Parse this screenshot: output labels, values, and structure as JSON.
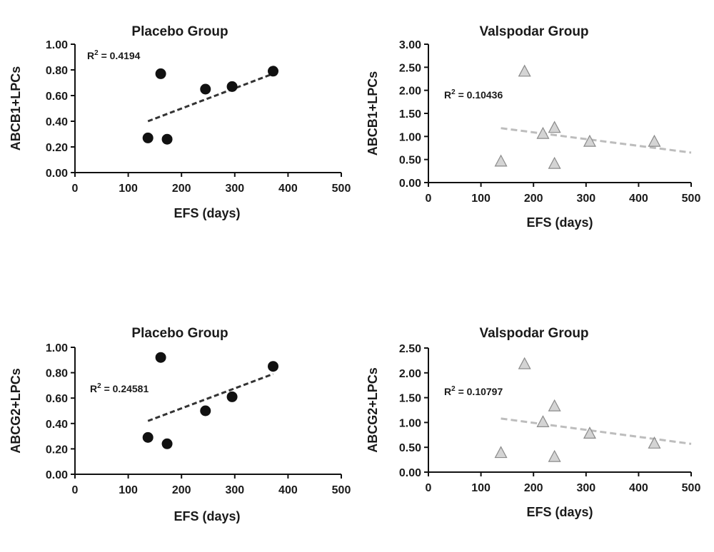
{
  "colors": {
    "text": "#1a1a1a",
    "axis": "#111111",
    "placebo_marker": "#111111",
    "placebo_trend": "#333333",
    "valspodar_marker_fill": "#d4d4d4",
    "valspodar_marker_stroke": "#8a8a8a",
    "valspodar_trend": "#bdbdbd"
  },
  "chart_data": [
    {
      "type": "scatter",
      "title": "Placebo Group",
      "xlabel": "EFS (days)",
      "ylabel": "ABCB1+LPCs",
      "xlim": [
        0,
        500
      ],
      "ylim": [
        0,
        1.0
      ],
      "x_ticks": [
        "0",
        "100",
        "200",
        "300",
        "400",
        "500"
      ],
      "y_ticks": [
        "0.00",
        "0.20",
        "0.40",
        "0.60",
        "0.80",
        "1.00"
      ],
      "annotation": {
        "r2_prefix": "R",
        "r2_sup": "2",
        "r2_value": " = 0.4194"
      },
      "marker": "circle",
      "trendline_style": "dashed",
      "trendline": {
        "x": [
          137,
          372
        ],
        "y": [
          0.4,
          0.77
        ]
      },
      "points": [
        {
          "x": 137,
          "y": 0.27
        },
        {
          "x": 161,
          "y": 0.77
        },
        {
          "x": 173,
          "y": 0.26
        },
        {
          "x": 245,
          "y": 0.65
        },
        {
          "x": 295,
          "y": 0.67
        },
        {
          "x": 372,
          "y": 0.79
        }
      ]
    },
    {
      "type": "scatter",
      "title": "Valspodar Group",
      "xlabel": "EFS (days)",
      "ylabel": "ABCB1+LPCs",
      "xlim": [
        0,
        500
      ],
      "ylim": [
        0,
        3.0
      ],
      "x_ticks": [
        "0",
        "100",
        "200",
        "300",
        "400",
        "500"
      ],
      "y_ticks": [
        "0.00",
        "0.50",
        "1.00",
        "1.50",
        "2.00",
        "2.50",
        "3.00"
      ],
      "annotation": {
        "r2_prefix": "R",
        "r2_sup": "2",
        "r2_value": " = 0.10436"
      },
      "marker": "triangle",
      "trendline_style": "dashed",
      "trendline": {
        "x": [
          138,
          500
        ],
        "y": [
          1.18,
          0.65
        ]
      },
      "points": [
        {
          "x": 138,
          "y": 0.45
        },
        {
          "x": 183,
          "y": 2.4
        },
        {
          "x": 218,
          "y": 1.05
        },
        {
          "x": 240,
          "y": 1.18
        },
        {
          "x": 240,
          "y": 0.4
        },
        {
          "x": 307,
          "y": 0.88
        },
        {
          "x": 430,
          "y": 0.88
        }
      ]
    },
    {
      "type": "scatter",
      "title": "Placebo Group",
      "xlabel": "EFS (days)",
      "ylabel": "ABCG2+LPCs",
      "xlim": [
        0,
        500
      ],
      "ylim": [
        0,
        1.0
      ],
      "x_ticks": [
        "0",
        "100",
        "200",
        "300",
        "400",
        "500"
      ],
      "y_ticks": [
        "0.00",
        "0.20",
        "0.40",
        "0.60",
        "0.80",
        "1.00"
      ],
      "annotation": {
        "r2_prefix": "R",
        "r2_sup": "2",
        "r2_value": " = 0.24581"
      },
      "marker": "circle",
      "trendline_style": "dashed",
      "trendline": {
        "x": [
          137,
          372
        ],
        "y": [
          0.42,
          0.79
        ]
      },
      "points": [
        {
          "x": 137,
          "y": 0.29
        },
        {
          "x": 161,
          "y": 0.92
        },
        {
          "x": 173,
          "y": 0.24
        },
        {
          "x": 245,
          "y": 0.5
        },
        {
          "x": 295,
          "y": 0.61
        },
        {
          "x": 372,
          "y": 0.85
        }
      ]
    },
    {
      "type": "scatter",
      "title": "Valspodar Group",
      "xlabel": "EFS (days)",
      "ylabel": "ABCG2+LPCs",
      "xlim": [
        0,
        500
      ],
      "ylim": [
        0,
        2.5
      ],
      "x_ticks": [
        "0",
        "100",
        "200",
        "300",
        "400",
        "500"
      ],
      "y_ticks": [
        "0.00",
        "0.50",
        "1.00",
        "1.50",
        "2.00",
        "2.50"
      ],
      "annotation": {
        "r2_prefix": "R",
        "r2_sup": "2",
        "r2_value": " = 0.10797"
      },
      "marker": "triangle",
      "trendline_style": "dashed",
      "trendline": {
        "x": [
          138,
          500
        ],
        "y": [
          1.08,
          0.57
        ]
      },
      "points": [
        {
          "x": 138,
          "y": 0.38
        },
        {
          "x": 183,
          "y": 2.17
        },
        {
          "x": 218,
          "y": 1.0
        },
        {
          "x": 240,
          "y": 1.32
        },
        {
          "x": 240,
          "y": 0.3
        },
        {
          "x": 307,
          "y": 0.77
        },
        {
          "x": 430,
          "y": 0.57
        }
      ]
    }
  ]
}
